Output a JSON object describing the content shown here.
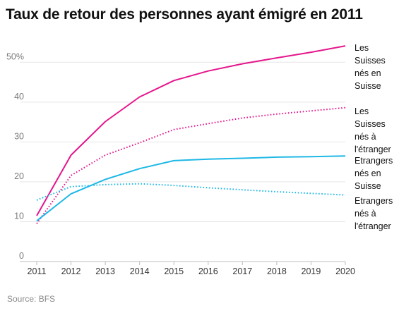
{
  "title": "Taux de retour des personnes ayant émigré en 2011",
  "source": "Source: BFS",
  "chart_data": {
    "type": "line",
    "title": "Taux de retour des personnes ayant émigré en 2011",
    "xlabel": "",
    "ylabel": "",
    "x": [
      2011,
      2012,
      2013,
      2014,
      2015,
      2016,
      2017,
      2018,
      2019,
      2020
    ],
    "ylim": [
      0,
      55
    ],
    "y_ticks": [
      "0",
      "10",
      "20",
      "30",
      "40",
      "50%"
    ],
    "grid": true,
    "legend": "right, labels at line ends",
    "series": [
      {
        "name": "Les Suisses nés en Suisse",
        "label_lines": [
          "Les",
          "Suisses",
          "nés en",
          "Suisse"
        ],
        "color": "#e5168c",
        "style": "solid",
        "values": [
          11.5,
          26.7,
          35.1,
          41.3,
          45.4,
          47.8,
          49.6,
          51.1,
          52.5,
          54.1
        ]
      },
      {
        "name": "Les Suisses nés à l'étranger",
        "label_lines": [
          "Les",
          "Suisses",
          "nés à",
          "l'étranger"
        ],
        "color": "#e5168c",
        "style": "dotted",
        "values": [
          9.5,
          21.6,
          26.7,
          29.8,
          33.1,
          34.6,
          36.0,
          37.0,
          37.8,
          38.6
        ]
      },
      {
        "name": "Etrangers nés en Suisse",
        "label_lines": [
          "Etrangers",
          "nés en",
          "Suisse"
        ],
        "color": "#1eb8e6",
        "style": "solid",
        "values": [
          10.2,
          17.0,
          20.6,
          23.3,
          25.3,
          25.7,
          25.9,
          26.2,
          26.3,
          26.5
        ]
      },
      {
        "name": "Etrangers nés à l'étranger",
        "label_lines": [
          "Etrangers",
          "nés à",
          "l'étranger"
        ],
        "color": "#1eb8e6",
        "style": "dotted",
        "values": [
          15.4,
          18.8,
          19.3,
          19.5,
          19.1,
          18.5,
          18.0,
          17.5,
          17.1,
          16.7
        ]
      }
    ]
  }
}
